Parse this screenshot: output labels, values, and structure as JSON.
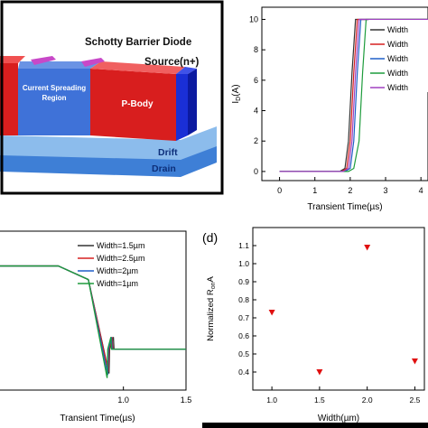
{
  "panel_a": {
    "label_sbd": "Schotty Barrier Diode",
    "label_source": "Source(n+)",
    "label_csr": "Current Spreading Region",
    "label_csr_line1": "Current Spreading",
    "label_csr_line2": "Region",
    "label_pbody": "P-Body",
    "label_drift": "Drift",
    "label_drain": "Drain",
    "colors": {
      "frame": "#000000",
      "pbody": "#e02020",
      "csr": "#3b6fd8",
      "source": "#1a2fd6",
      "drift": "#7fb3ea",
      "drain": "#4d8fdc",
      "metal": "#c848c8"
    }
  },
  "chart_data": [
    {
      "panel": "b",
      "type": "line",
      "xlabel": "Transient Time(µs)",
      "ylabel": "I_D(A)",
      "ylabel_main": "I",
      "ylabel_sub": "D",
      "ylabel_unit": "(A)",
      "xlim": [
        -0.5,
        4.2
      ],
      "ylim": [
        -0.6,
        10.8
      ],
      "x_ticks": [
        "0",
        "1",
        "2",
        "3",
        "4"
      ],
      "x_tick_values": [
        0,
        1,
        2,
        3,
        4
      ],
      "y_ticks": [
        "0",
        "2",
        "4",
        "6",
        "8",
        "10"
      ],
      "y_tick_values": [
        0,
        2,
        4,
        6,
        8,
        10
      ],
      "legend_position": "top-right",
      "series": [
        {
          "name": "Width",
          "color": "#333333",
          "x": [
            0,
            1.7,
            1.85,
            1.95,
            2.05,
            2.15,
            2.25,
            4.2
          ],
          "y": [
            0,
            0,
            0.2,
            2.0,
            6.5,
            10,
            10,
            10
          ]
        },
        {
          "name": "Width",
          "color": "#d62020",
          "x": [
            0,
            1.75,
            1.9,
            2.0,
            2.1,
            2.2,
            2.3,
            4.2
          ],
          "y": [
            0,
            0,
            0.2,
            2.0,
            6.5,
            10,
            10,
            10
          ]
        },
        {
          "name": "Width",
          "color": "#1f5fc8",
          "x": [
            0,
            1.85,
            2.0,
            2.1,
            2.2,
            2.3,
            2.4,
            4.2
          ],
          "y": [
            0,
            0,
            0.2,
            2.0,
            6.5,
            10,
            10,
            10
          ]
        },
        {
          "name": "Width",
          "color": "#1e9c3c",
          "x": [
            0,
            1.95,
            2.1,
            2.25,
            2.35,
            2.45,
            2.55,
            4.2
          ],
          "y": [
            0,
            0,
            0.2,
            2.0,
            6.5,
            10,
            10,
            10
          ]
        },
        {
          "name": "Width",
          "color": "#a040c0",
          "x": [
            0,
            1.8,
            1.95,
            2.05,
            2.15,
            2.25,
            2.35,
            4.2
          ],
          "y": [
            0,
            0,
            0.2,
            2.0,
            6.5,
            10,
            10,
            10
          ]
        }
      ]
    },
    {
      "panel": "c",
      "type": "line",
      "xlabel": "Transient Time(µs)",
      "ylabel": "",
      "xlim": [
        0,
        1.5
      ],
      "ylim": [
        0,
        1.05
      ],
      "x_ticks": [
        "1.0",
        "1.5"
      ],
      "x_tick_values": [
        1.0,
        1.5
      ],
      "legend_position": "top-right",
      "series": [
        {
          "name": "Width=1.5µm",
          "color": "#333333",
          "x": [
            0,
            0.48,
            0.72,
            0.885,
            0.89,
            0.92,
            0.925,
            1.5
          ],
          "y": [
            0.82,
            0.82,
            0.73,
            0.11,
            0.27,
            0.35,
            0.27,
            0.27
          ]
        },
        {
          "name": "Width=2.5µm",
          "color": "#d62020",
          "x": [
            0,
            0.48,
            0.72,
            0.88,
            0.885,
            0.91,
            0.915,
            1.5
          ],
          "y": [
            0.82,
            0.82,
            0.73,
            0.12,
            0.27,
            0.35,
            0.27,
            0.27
          ]
        },
        {
          "name": "Width=2µm",
          "color": "#1f5fc8",
          "x": [
            0,
            0.48,
            0.72,
            0.875,
            0.88,
            0.905,
            0.91,
            1.5
          ],
          "y": [
            0.82,
            0.82,
            0.73,
            0.1,
            0.27,
            0.35,
            0.27,
            0.27
          ]
        },
        {
          "name": "Width=1µm",
          "color": "#1e9c3c",
          "x": [
            0,
            0.48,
            0.72,
            0.87,
            0.875,
            0.9,
            0.905,
            1.5
          ],
          "y": [
            0.82,
            0.82,
            0.73,
            0.08,
            0.27,
            0.35,
            0.27,
            0.27
          ]
        }
      ]
    },
    {
      "panel": "d",
      "type": "scatter",
      "panel_label": "(d)",
      "xlabel": "Width(µm)",
      "ylabel": "Normalized R_on,sp A",
      "ylabel_main": "Normalized R",
      "ylabel_sub": "on",
      "ylabel_tail": "A",
      "xlim": [
        0.8,
        2.6
      ],
      "ylim": [
        0.3,
        1.2
      ],
      "x_ticks": [
        "1.0",
        "1.5",
        "2.0",
        "2.5"
      ],
      "x_tick_values": [
        1.0,
        1.5,
        2.0,
        2.5
      ],
      "y_ticks": [
        "0.4",
        "0.5",
        "0.6",
        "0.7",
        "0.8",
        "0.9",
        "1.0",
        "1.1"
      ],
      "y_tick_values": [
        0.4,
        0.5,
        0.6,
        0.7,
        0.8,
        0.9,
        1.0,
        1.1
      ],
      "marker_color": "#e01010",
      "points": [
        {
          "x": 1.0,
          "y": 0.73
        },
        {
          "x": 1.5,
          "y": 0.4
        },
        {
          "x": 2.0,
          "y": 1.09
        },
        {
          "x": 2.5,
          "y": 0.46
        }
      ]
    }
  ]
}
